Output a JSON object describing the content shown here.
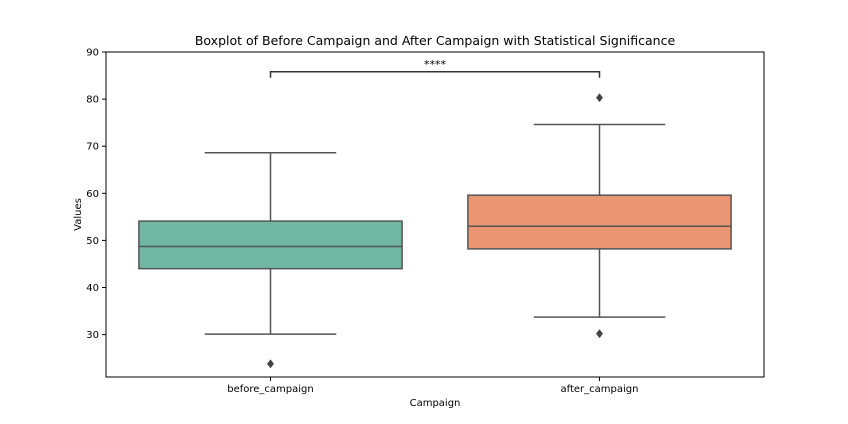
{
  "chart_data": {
    "type": "box",
    "title": "Boxplot of Before Campaign and After Campaign with Statistical Significance",
    "xlabel": "Campaign",
    "ylabel": "Values",
    "ylim": [
      21,
      90
    ],
    "yticks": [
      30,
      40,
      50,
      60,
      70,
      80,
      90
    ],
    "grid": false,
    "categories": [
      "before_campaign",
      "after_campaign"
    ],
    "boxes": [
      {
        "name": "before_campaign",
        "whisker_low": 30.1,
        "q1": 44.0,
        "median": 48.7,
        "q3": 54.1,
        "whisker_high": 68.6,
        "outliers": [
          23.8
        ],
        "color": "#71b6a1"
      },
      {
        "name": "after_campaign",
        "whisker_low": 33.7,
        "q1": 48.2,
        "median": 53.0,
        "q3": 59.6,
        "whisker_high": 74.6,
        "outliers": [
          80.3,
          30.2
        ],
        "color": "#ea9674"
      }
    ],
    "significance": {
      "between": [
        "before_campaign",
        "after_campaign"
      ],
      "label": "****",
      "y": 85.8
    }
  }
}
